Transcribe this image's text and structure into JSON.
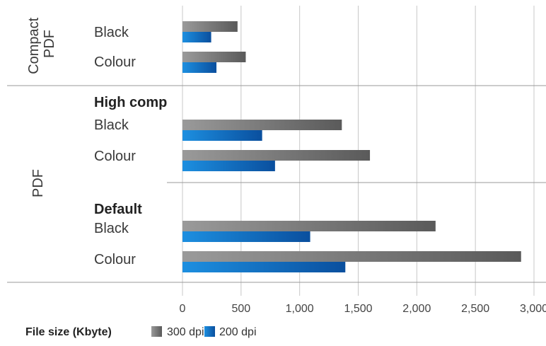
{
  "chart_data": {
    "type": "bar",
    "orientation": "horizontal",
    "xlabel": "File size (Kbyte)",
    "xlim": [
      0,
      3000
    ],
    "x_ticks": [
      "0",
      "500",
      "1,000",
      "1,500",
      "2,000",
      "2,500",
      "3,000"
    ],
    "grid": true,
    "legend_position": "bottom",
    "groups": [
      {
        "label": "Compact PDF",
        "subgroups": [
          {
            "label": "",
            "categories": [
              "Black",
              "Colour"
            ]
          }
        ]
      },
      {
        "label": "PDF",
        "subgroups": [
          {
            "label": "High comp",
            "categories": [
              "Black",
              "Colour"
            ]
          },
          {
            "label": "Default",
            "categories": [
              "Black",
              "Colour"
            ]
          }
        ]
      }
    ],
    "categories": [
      "Compact PDF / Black",
      "Compact PDF / Colour",
      "PDF High comp / Black",
      "PDF High comp / Colour",
      "PDF Default / Black",
      "PDF Default / Colour"
    ],
    "series": [
      {
        "name": "300 dpi",
        "color": "#6a6a6a",
        "values": [
          470,
          540,
          1360,
          1600,
          2160,
          2890
        ]
      },
      {
        "name": "200 dpi",
        "color": "#0a5fb4",
        "values": [
          245,
          290,
          680,
          790,
          1090,
          1390
        ]
      }
    ]
  }
}
